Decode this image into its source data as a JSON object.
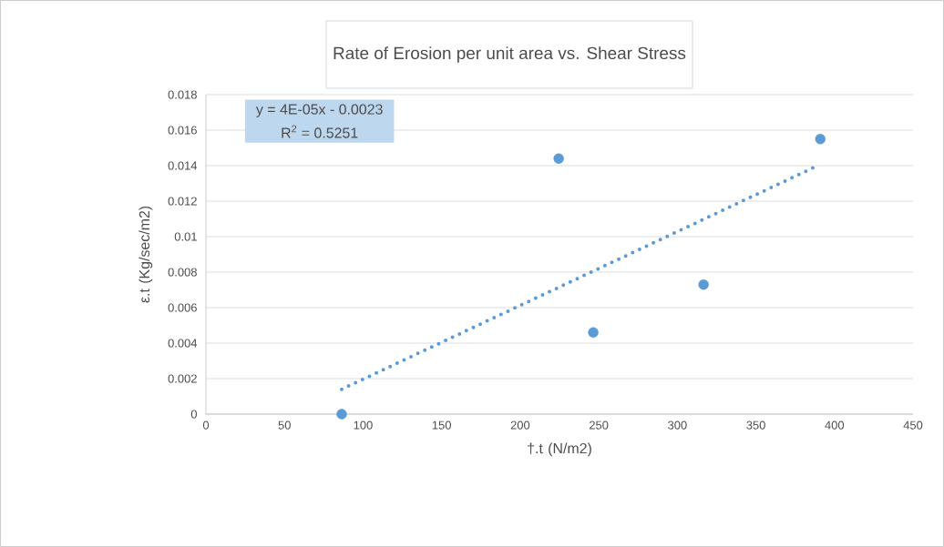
{
  "chart_data": {
    "type": "scatter",
    "title": "Rate of Erosion per unit area vs. Shear Stress",
    "xlabel": "†.t (N/m2)",
    "ylabel": "ε.t (Kg/sec/m2)",
    "xlim": [
      0,
      450
    ],
    "xticks": [
      0,
      50,
      100,
      150,
      200,
      250,
      300,
      350,
      400,
      450
    ],
    "ylim": [
      0,
      0.018
    ],
    "yticks": [
      0,
      0.002,
      0.004,
      0.006,
      0.008,
      0.01,
      0.012,
      0.014,
      0.016,
      0.018
    ],
    "grid": "y",
    "marker": "circle",
    "annotations": [
      {
        "text": "y = 4E-05x - 0.0023"
      },
      {
        "text": "R$^{2}$ = 0.5251"
      }
    ],
    "series": [
      {
        "color": "#5b9bd5",
        "x": [
          86.4,
          224.5,
          246.5,
          316.7,
          391
        ],
        "values": [
          0,
          0.0144,
          0.0046,
          0.0073,
          0.0155
        ]
      },
      {
        "type": "line",
        "color": "#5b9bd5",
        "line_style": "dotted",
        "marker": "none",
        "x": [
          86.4,
          387
        ],
        "values": [
          0.0014,
          0.0139
        ]
      }
    ]
  }
}
